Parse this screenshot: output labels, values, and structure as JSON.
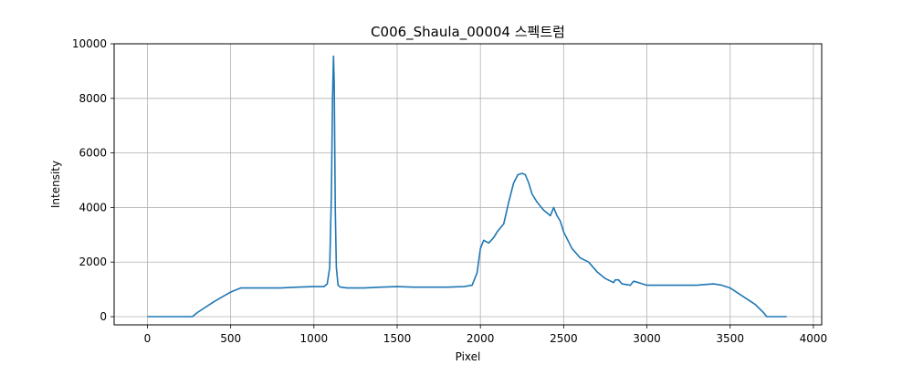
{
  "chart_data": {
    "type": "line",
    "title": "C006_Shaula_00004 스펙트럼",
    "xlabel": "Pixel",
    "ylabel": "Intensity",
    "xlim": [
      -200,
      4050
    ],
    "ylim": [
      -300,
      10000
    ],
    "grid": true,
    "x_ticks": [
      0,
      500,
      1000,
      1500,
      2000,
      2500,
      3000,
      3500,
      4000
    ],
    "x_tick_labels": [
      "0",
      "500",
      "1000",
      "1500",
      "2000",
      "2500",
      "3000",
      "3500",
      "4000"
    ],
    "y_ticks": [
      0,
      2000,
      4000,
      6000,
      8000,
      10000
    ],
    "y_tick_labels": [
      "0",
      "2000",
      "4000",
      "6000",
      "8000",
      "10000"
    ],
    "series": [
      {
        "color": "#1f77b4",
        "x": [
          0,
          270,
          300,
          400,
          500,
          560,
          600,
          700,
          800,
          900,
          1000,
          1060,
          1080,
          1095,
          1105,
          1112,
          1118,
          1122,
          1128,
          1135,
          1145,
          1160,
          1200,
          1300,
          1400,
          1500,
          1600,
          1700,
          1800,
          1900,
          1950,
          1980,
          2000,
          2020,
          2050,
          2080,
          2100,
          2140,
          2170,
          2200,
          2225,
          2250,
          2270,
          2290,
          2310,
          2340,
          2380,
          2420,
          2440,
          2460,
          2480,
          2500,
          2550,
          2600,
          2650,
          2700,
          2750,
          2800,
          2810,
          2830,
          2850,
          2900,
          2920,
          2950,
          3000,
          3100,
          3200,
          3300,
          3400,
          3450,
          3500,
          3550,
          3600,
          3650,
          3700,
          3720,
          3750,
          3800,
          3840
        ],
        "y": [
          0,
          0,
          150,
          550,
          900,
          1050,
          1050,
          1050,
          1050,
          1080,
          1100,
          1100,
          1200,
          1800,
          4500,
          8000,
          9550,
          8500,
          4000,
          1800,
          1150,
          1080,
          1050,
          1050,
          1080,
          1100,
          1080,
          1080,
          1080,
          1100,
          1150,
          1600,
          2500,
          2800,
          2700,
          2900,
          3100,
          3400,
          4200,
          4900,
          5200,
          5250,
          5200,
          4900,
          4500,
          4200,
          3900,
          3700,
          4000,
          3700,
          3500,
          3100,
          2500,
          2150,
          2000,
          1650,
          1400,
          1250,
          1350,
          1350,
          1200,
          1150,
          1300,
          1250,
          1150,
          1150,
          1150,
          1150,
          1200,
          1150,
          1050,
          850,
          650,
          450,
          150,
          0,
          0,
          0,
          0
        ]
      }
    ]
  }
}
